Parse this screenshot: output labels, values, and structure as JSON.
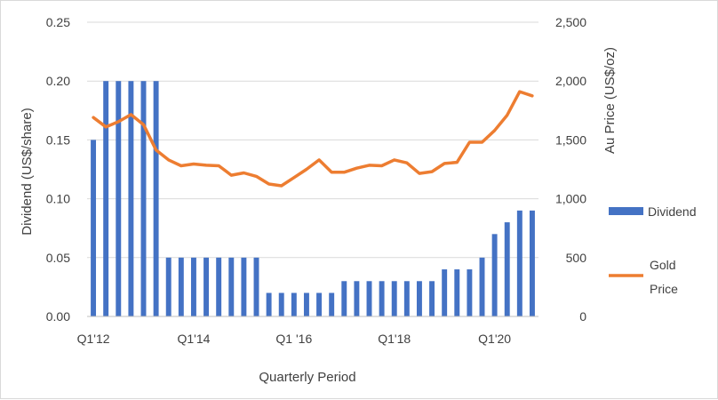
{
  "chart_data": {
    "type": "bar+line",
    "x_tick_labels": [
      "Q1'12",
      "Q1'14",
      "Q1 '16",
      "Q1'18",
      "Q1'20"
    ],
    "x_tick_indices": [
      0,
      8,
      16,
      24,
      32
    ],
    "xlabel": "Quarterly Period",
    "ylabel_left": "Dividend (US$/share)",
    "ylabel_right": "Au Price (US$/oz)",
    "ylim_left": [
      0,
      0.25
    ],
    "ylim_right": [
      0,
      2500
    ],
    "left_ticks": [
      "0.00",
      "0.05",
      "0.10",
      "0.15",
      "0.20",
      "0.25"
    ],
    "left_tick_values": [
      0,
      0.05,
      0.1,
      0.15,
      0.2,
      0.25
    ],
    "right_ticks": [
      "0",
      "500",
      "1,000",
      "1,500",
      "2,000",
      "2,500"
    ],
    "right_tick_values": [
      0,
      500,
      1000,
      1500,
      2000,
      2500
    ],
    "grid": "horizontal",
    "legend_position": "right",
    "series": [
      {
        "name": "Dividend",
        "type": "bar",
        "axis": "left",
        "color": "#4472c4",
        "values": [
          0.15,
          0.2,
          0.2,
          0.2,
          0.2,
          0.2,
          0.05,
          0.05,
          0.05,
          0.05,
          0.05,
          0.05,
          0.05,
          0.05,
          0.02,
          0.02,
          0.02,
          0.02,
          0.02,
          0.02,
          0.03,
          0.03,
          0.03,
          0.03,
          0.03,
          0.03,
          0.03,
          0.03,
          0.04,
          0.04,
          0.04,
          0.05,
          0.07,
          0.08,
          0.09,
          0.09
        ]
      },
      {
        "name": "Gold Price",
        "name_lines": [
          "Gold",
          "Price"
        ],
        "type": "line",
        "axis": "right",
        "color": "#ed7d31",
        "values": [
          1690,
          1610,
          1655,
          1715,
          1630,
          1415,
          1330,
          1280,
          1295,
          1285,
          1280,
          1200,
          1220,
          1190,
          1125,
          1110,
          1180,
          1250,
          1330,
          1225,
          1225,
          1260,
          1285,
          1280,
          1330,
          1305,
          1215,
          1230,
          1300,
          1310,
          1480,
          1480,
          1580,
          1710,
          1910,
          1875
        ]
      }
    ]
  }
}
